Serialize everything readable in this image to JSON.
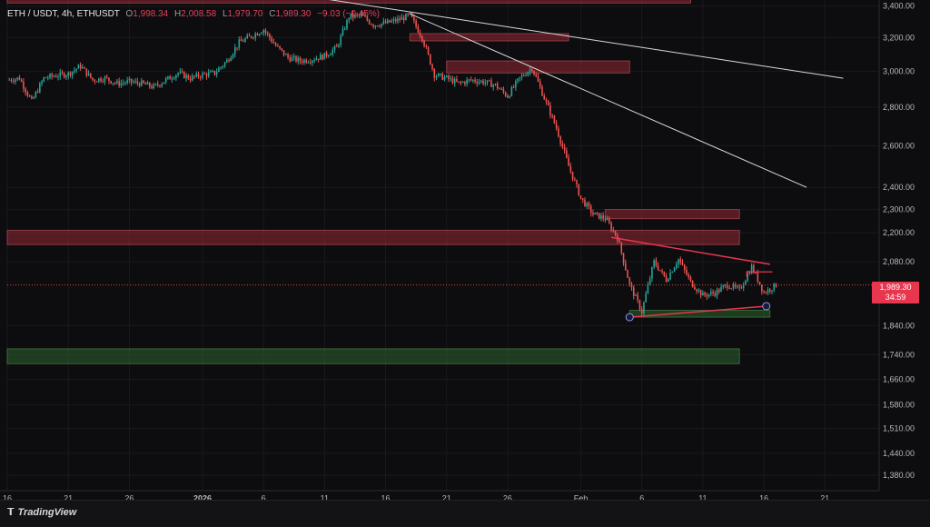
{
  "header": {
    "symbol": "ETH / USDT, 4h, ETHUSDT",
    "o_label": "O",
    "o_value": "1,998.34",
    "h_label": "H",
    "h_value": "2,008.58",
    "l_label": "L",
    "l_value": "1,979.70",
    "c_label": "C",
    "c_value": "1,989.30",
    "change": "−9.03 (−0.45%)"
  },
  "price_tag": {
    "price": "1,989.30",
    "countdown": "34:59"
  },
  "footer": {
    "brand": "TradingView",
    "logo_icon": "tradingview-logo-icon"
  },
  "colors": {
    "up": "#26a69a",
    "down": "#ef5350",
    "zone_red": "#8a2a33",
    "zone_green": "#2d5a2d",
    "trend": "#d9d9d9",
    "triangle": "#e8364f",
    "background": "#0d0d0f"
  },
  "chart_data": {
    "type": "candlestick",
    "symbol": "ETH / USDT",
    "interval": "4h",
    "y_scale": "log",
    "ylim": [
      1340,
      3440
    ],
    "y_ticks": [
      "3,400.00",
      "3,200.00",
      "3,000.00",
      "2,800.00",
      "2,600.00",
      "2,400.00",
      "2,300.00",
      "2,200.00",
      "2,080.00",
      "1,840.00",
      "1,740.00",
      "1,660.00",
      "1,580.00",
      "1,510.00",
      "1,440.00",
      "1,380.00"
    ],
    "y_tick_values": [
      3400,
      3200,
      3000,
      2800,
      2600,
      2400,
      2300,
      2200,
      2080,
      1840,
      1740,
      1660,
      1580,
      1510,
      1440,
      1380
    ],
    "x_ticks": [
      "16",
      "21",
      "26",
      "2026",
      "6",
      "11",
      "16",
      "21",
      "26",
      "Feb",
      "6",
      "11",
      "16",
      "21"
    ],
    "x_tick_days": [
      0,
      5,
      10,
      16,
      21,
      26,
      31,
      36,
      41,
      47,
      52,
      57,
      62,
      67
    ],
    "x_range_days": [
      0,
      71
    ],
    "last_price": 1989.3,
    "price_path": [
      [
        0,
        2950
      ],
      [
        1,
        2960
      ],
      [
        2,
        2830
      ],
      [
        3,
        2960
      ],
      [
        4,
        2975
      ],
      [
        5,
        2985
      ],
      [
        6,
        3030
      ],
      [
        7,
        2950
      ],
      [
        8,
        2960
      ],
      [
        9,
        2930
      ],
      [
        10,
        2940
      ],
      [
        11,
        2930
      ],
      [
        12,
        2910
      ],
      [
        13,
        2950
      ],
      [
        14,
        2990
      ],
      [
        15,
        2960
      ],
      [
        16,
        2980
      ],
      [
        17,
        2990
      ],
      [
        18,
        3060
      ],
      [
        19,
        3170
      ],
      [
        20,
        3210
      ],
      [
        21,
        3250
      ],
      [
        22,
        3150
      ],
      [
        23,
        3080
      ],
      [
        24,
        3060
      ],
      [
        25,
        3070
      ],
      [
        26,
        3090
      ],
      [
        27,
        3140
      ],
      [
        28,
        3330
      ],
      [
        29,
        3340
      ],
      [
        30,
        3280
      ],
      [
        31,
        3290
      ],
      [
        32,
        3310
      ],
      [
        33,
        3340
      ],
      [
        34,
        3200
      ],
      [
        35,
        2980
      ],
      [
        36,
        2960
      ],
      [
        37,
        2930
      ],
      [
        38,
        2950
      ],
      [
        39,
        2940
      ],
      [
        40,
        2920
      ],
      [
        41,
        2860
      ],
      [
        42,
        2960
      ],
      [
        43,
        3020
      ],
      [
        44,
        2850
      ],
      [
        45,
        2690
      ],
      [
        46,
        2500
      ],
      [
        47,
        2350
      ],
      [
        48,
        2280
      ],
      [
        49,
        2260
      ],
      [
        50,
        2180
      ],
      [
        51,
        1990
      ],
      [
        52,
        1890
      ],
      [
        53,
        2080
      ],
      [
        54,
        2010
      ],
      [
        55,
        2090
      ],
      [
        56,
        2000
      ],
      [
        57,
        1950
      ],
      [
        58,
        1960
      ],
      [
        59,
        1990
      ],
      [
        60,
        1970
      ],
      [
        61,
        2060
      ],
      [
        62,
        1960
      ],
      [
        63,
        1989.3
      ]
    ],
    "zones": [
      {
        "kind": "supply",
        "low": 3420,
        "high": 3460,
        "start_day": 0,
        "end_day": 56
      },
      {
        "kind": "supply",
        "low": 3180,
        "high": 3225,
        "start_day": 33,
        "end_day": 46
      },
      {
        "kind": "supply",
        "low": 2990,
        "high": 3060,
        "start_day": 36,
        "end_day": 51
      },
      {
        "kind": "supply",
        "low": 2260,
        "high": 2300,
        "start_day": 49,
        "end_day": 60
      },
      {
        "kind": "supply",
        "low": 2150,
        "high": 2210,
        "start_day": 0,
        "end_day": 60
      },
      {
        "kind": "demand",
        "low": 1870,
        "high": 1895,
        "start_day": 51,
        "end_day": 62.5
      },
      {
        "kind": "demand",
        "low": 1710,
        "high": 1760,
        "start_day": 0,
        "end_day": 60
      }
    ],
    "trendlines": [
      {
        "kind": "descending",
        "from": [
          25,
          3460
        ],
        "to": [
          68.5,
          2960
        ]
      },
      {
        "kind": "descending",
        "from": [
          33,
          3350
        ],
        "to": [
          65.5,
          2400
        ]
      }
    ],
    "triangle": {
      "upper": [
        [
          49.5,
          2180
        ],
        [
          62.5,
          2070
        ]
      ],
      "lower": [
        [
          51,
          1870
        ],
        [
          62.2,
          1910
        ]
      ],
      "box_top": 2040,
      "box_right_day": 62.7
    },
    "markers": [
      [
        51,
        1870
      ],
      [
        62.2,
        1910
      ]
    ]
  }
}
